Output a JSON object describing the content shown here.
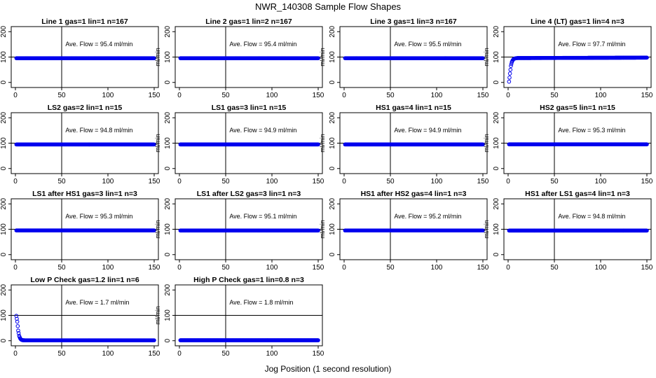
{
  "figure": {
    "title": "NWR_140308  Sample Flow Shapes",
    "xlabel": "Jog Position (1 second resolution)"
  },
  "chart_data": [
    {
      "type": "scatter",
      "title": "Line 1 gas=1 lin=1 n=167",
      "ylabel": "ml/min",
      "annotation": "Ave. Flow = 95.4  ml/min",
      "xlim": [
        0,
        150
      ],
      "ylim": [
        -20,
        220
      ],
      "xticks": [
        0,
        50,
        100,
        150
      ],
      "yticks": [
        0,
        100,
        200
      ],
      "vline_x": 50,
      "hline_y": 100,
      "color": "#0000ee",
      "x": [
        1,
        150
      ],
      "y": [
        95.4,
        95.4
      ]
    },
    {
      "type": "scatter",
      "title": "Line 2 gas=1 lin=2 n=167",
      "ylabel": "ml/min",
      "annotation": "Ave. Flow = 95.4  ml/min",
      "xlim": [
        0,
        150
      ],
      "ylim": [
        -20,
        220
      ],
      "xticks": [
        0,
        50,
        100,
        150
      ],
      "yticks": [
        0,
        100,
        200
      ],
      "vline_x": 50,
      "hline_y": 100,
      "color": "#0000ee",
      "x": [
        1,
        150
      ],
      "y": [
        95.4,
        95.4
      ]
    },
    {
      "type": "scatter",
      "title": "Line 3 gas=1 lin=3 n=167",
      "ylabel": "ml/min",
      "annotation": "Ave. Flow = 95.5  ml/min",
      "xlim": [
        0,
        150
      ],
      "ylim": [
        -20,
        220
      ],
      "xticks": [
        0,
        50,
        100,
        150
      ],
      "yticks": [
        0,
        100,
        200
      ],
      "vline_x": 50,
      "hline_y": 100,
      "color": "#0000ee",
      "x": [
        1,
        150
      ],
      "y": [
        95.5,
        95.5
      ]
    },
    {
      "type": "scatter",
      "title": "Line 4 (LT) gas=1 lin=4 n=3",
      "ylabel": "ml/min",
      "annotation": "Ave. Flow = 97.7  ml/min",
      "xlim": [
        0,
        150
      ],
      "ylim": [
        -20,
        220
      ],
      "xticks": [
        0,
        50,
        100,
        150
      ],
      "yticks": [
        0,
        100,
        200
      ],
      "vline_x": 50,
      "hline_y": 100,
      "color": "#0000ee",
      "x": [
        1,
        2,
        3,
        4,
        5,
        6,
        7,
        8,
        10,
        150
      ],
      "y": [
        3,
        35,
        65,
        80,
        88,
        92,
        94,
        95,
        96,
        97.7
      ]
    },
    {
      "type": "scatter",
      "title": "LS2 gas=2 lin=1 n=15",
      "ylabel": "ml/min",
      "annotation": "Ave. Flow = 94.8  ml/min",
      "xlim": [
        0,
        150
      ],
      "ylim": [
        -20,
        220
      ],
      "xticks": [
        0,
        50,
        100,
        150
      ],
      "yticks": [
        0,
        100,
        200
      ],
      "vline_x": 50,
      "hline_y": 100,
      "color": "#0000ee",
      "x": [
        1,
        150
      ],
      "y": [
        94.8,
        94.8
      ]
    },
    {
      "type": "scatter",
      "title": "LS1 gas=3 lin=1 n=15",
      "ylabel": "ml/min",
      "annotation": "Ave. Flow = 94.9  ml/min",
      "xlim": [
        0,
        150
      ],
      "ylim": [
        -20,
        220
      ],
      "xticks": [
        0,
        50,
        100,
        150
      ],
      "yticks": [
        0,
        100,
        200
      ],
      "vline_x": 50,
      "hline_y": 100,
      "color": "#0000ee",
      "x": [
        1,
        150
      ],
      "y": [
        94.9,
        94.9
      ]
    },
    {
      "type": "scatter",
      "title": "HS1 gas=4 lin=1 n=15",
      "ylabel": "ml/min",
      "annotation": "Ave. Flow = 94.9  ml/min",
      "xlim": [
        0,
        150
      ],
      "ylim": [
        -20,
        220
      ],
      "xticks": [
        0,
        50,
        100,
        150
      ],
      "yticks": [
        0,
        100,
        200
      ],
      "vline_x": 50,
      "hline_y": 100,
      "color": "#0000ee",
      "x": [
        1,
        150
      ],
      "y": [
        94.9,
        94.9
      ]
    },
    {
      "type": "scatter",
      "title": "HS2 gas=5 lin=1 n=15",
      "ylabel": "ml/min",
      "annotation": "Ave. Flow = 95.3  ml/min",
      "xlim": [
        0,
        150
      ],
      "ylim": [
        -20,
        220
      ],
      "xticks": [
        0,
        50,
        100,
        150
      ],
      "yticks": [
        0,
        100,
        200
      ],
      "vline_x": 50,
      "hline_y": 100,
      "color": "#0000ee",
      "x": [
        1,
        150
      ],
      "y": [
        95.3,
        95.3
      ]
    },
    {
      "type": "scatter",
      "title": "LS1 after HS1 gas=3 lin=1 n=3",
      "ylabel": "ml/min",
      "annotation": "Ave. Flow = 95.3  ml/min",
      "xlim": [
        0,
        150
      ],
      "ylim": [
        -20,
        220
      ],
      "xticks": [
        0,
        50,
        100,
        150
      ],
      "yticks": [
        0,
        100,
        200
      ],
      "vline_x": 50,
      "hline_y": 100,
      "color": "#0000ee",
      "x": [
        1,
        150
      ],
      "y": [
        95.3,
        95.3
      ]
    },
    {
      "type": "scatter",
      "title": "LS1 after LS2 gas=3 lin=1 n=3",
      "ylabel": "ml/min",
      "annotation": "Ave. Flow = 95.1  ml/min",
      "xlim": [
        0,
        150
      ],
      "ylim": [
        -20,
        220
      ],
      "xticks": [
        0,
        50,
        100,
        150
      ],
      "yticks": [
        0,
        100,
        200
      ],
      "vline_x": 50,
      "hline_y": 100,
      "color": "#0000ee",
      "x": [
        1,
        150
      ],
      "y": [
        95.1,
        95.1
      ]
    },
    {
      "type": "scatter",
      "title": "HS1 after HS2 gas=4 lin=1 n=3",
      "ylabel": "ml/min",
      "annotation": "Ave. Flow = 95.2  ml/min",
      "xlim": [
        0,
        150
      ],
      "ylim": [
        -20,
        220
      ],
      "xticks": [
        0,
        50,
        100,
        150
      ],
      "yticks": [
        0,
        100,
        200
      ],
      "vline_x": 50,
      "hline_y": 100,
      "color": "#0000ee",
      "x": [
        1,
        150
      ],
      "y": [
        95.2,
        95.2
      ]
    },
    {
      "type": "scatter",
      "title": "HS1 after LS1 gas=4 lin=1 n=3",
      "ylabel": "ml/min",
      "annotation": "Ave. Flow = 94.8  ml/min",
      "xlim": [
        0,
        150
      ],
      "ylim": [
        -20,
        220
      ],
      "xticks": [
        0,
        50,
        100,
        150
      ],
      "yticks": [
        0,
        100,
        200
      ],
      "vline_x": 50,
      "hline_y": 100,
      "color": "#0000ee",
      "x": [
        1,
        150
      ],
      "y": [
        94.8,
        94.8
      ]
    },
    {
      "type": "scatter",
      "title": "Low P Check gas=1.2 lin=1 n=6",
      "ylabel": "ml/min",
      "annotation": "Ave. Flow = 1.7  ml/min",
      "xlim": [
        0,
        150
      ],
      "ylim": [
        -20,
        220
      ],
      "xticks": [
        0,
        50,
        100,
        150
      ],
      "yticks": [
        0,
        100,
        200
      ],
      "vline_x": 50,
      "hline_y": 100,
      "color": "#0000ee",
      "x": [
        1,
        2,
        3,
        4,
        5,
        6,
        7,
        8,
        10,
        150
      ],
      "y": [
        98,
        75,
        40,
        20,
        10,
        5,
        3,
        2,
        1.7,
        1.7
      ]
    },
    {
      "type": "scatter",
      "title": "High P Check gas=1 lin=0.8 n=3",
      "ylabel": "ml/min",
      "annotation": "Ave. Flow = 1.8  ml/min",
      "xlim": [
        0,
        150
      ],
      "ylim": [
        -20,
        220
      ],
      "xticks": [
        0,
        50,
        100,
        150
      ],
      "yticks": [
        0,
        100,
        200
      ],
      "vline_x": 50,
      "hline_y": 100,
      "color": "#0000ee",
      "x": [
        1,
        150
      ],
      "y": [
        1.8,
        1.8
      ]
    }
  ]
}
